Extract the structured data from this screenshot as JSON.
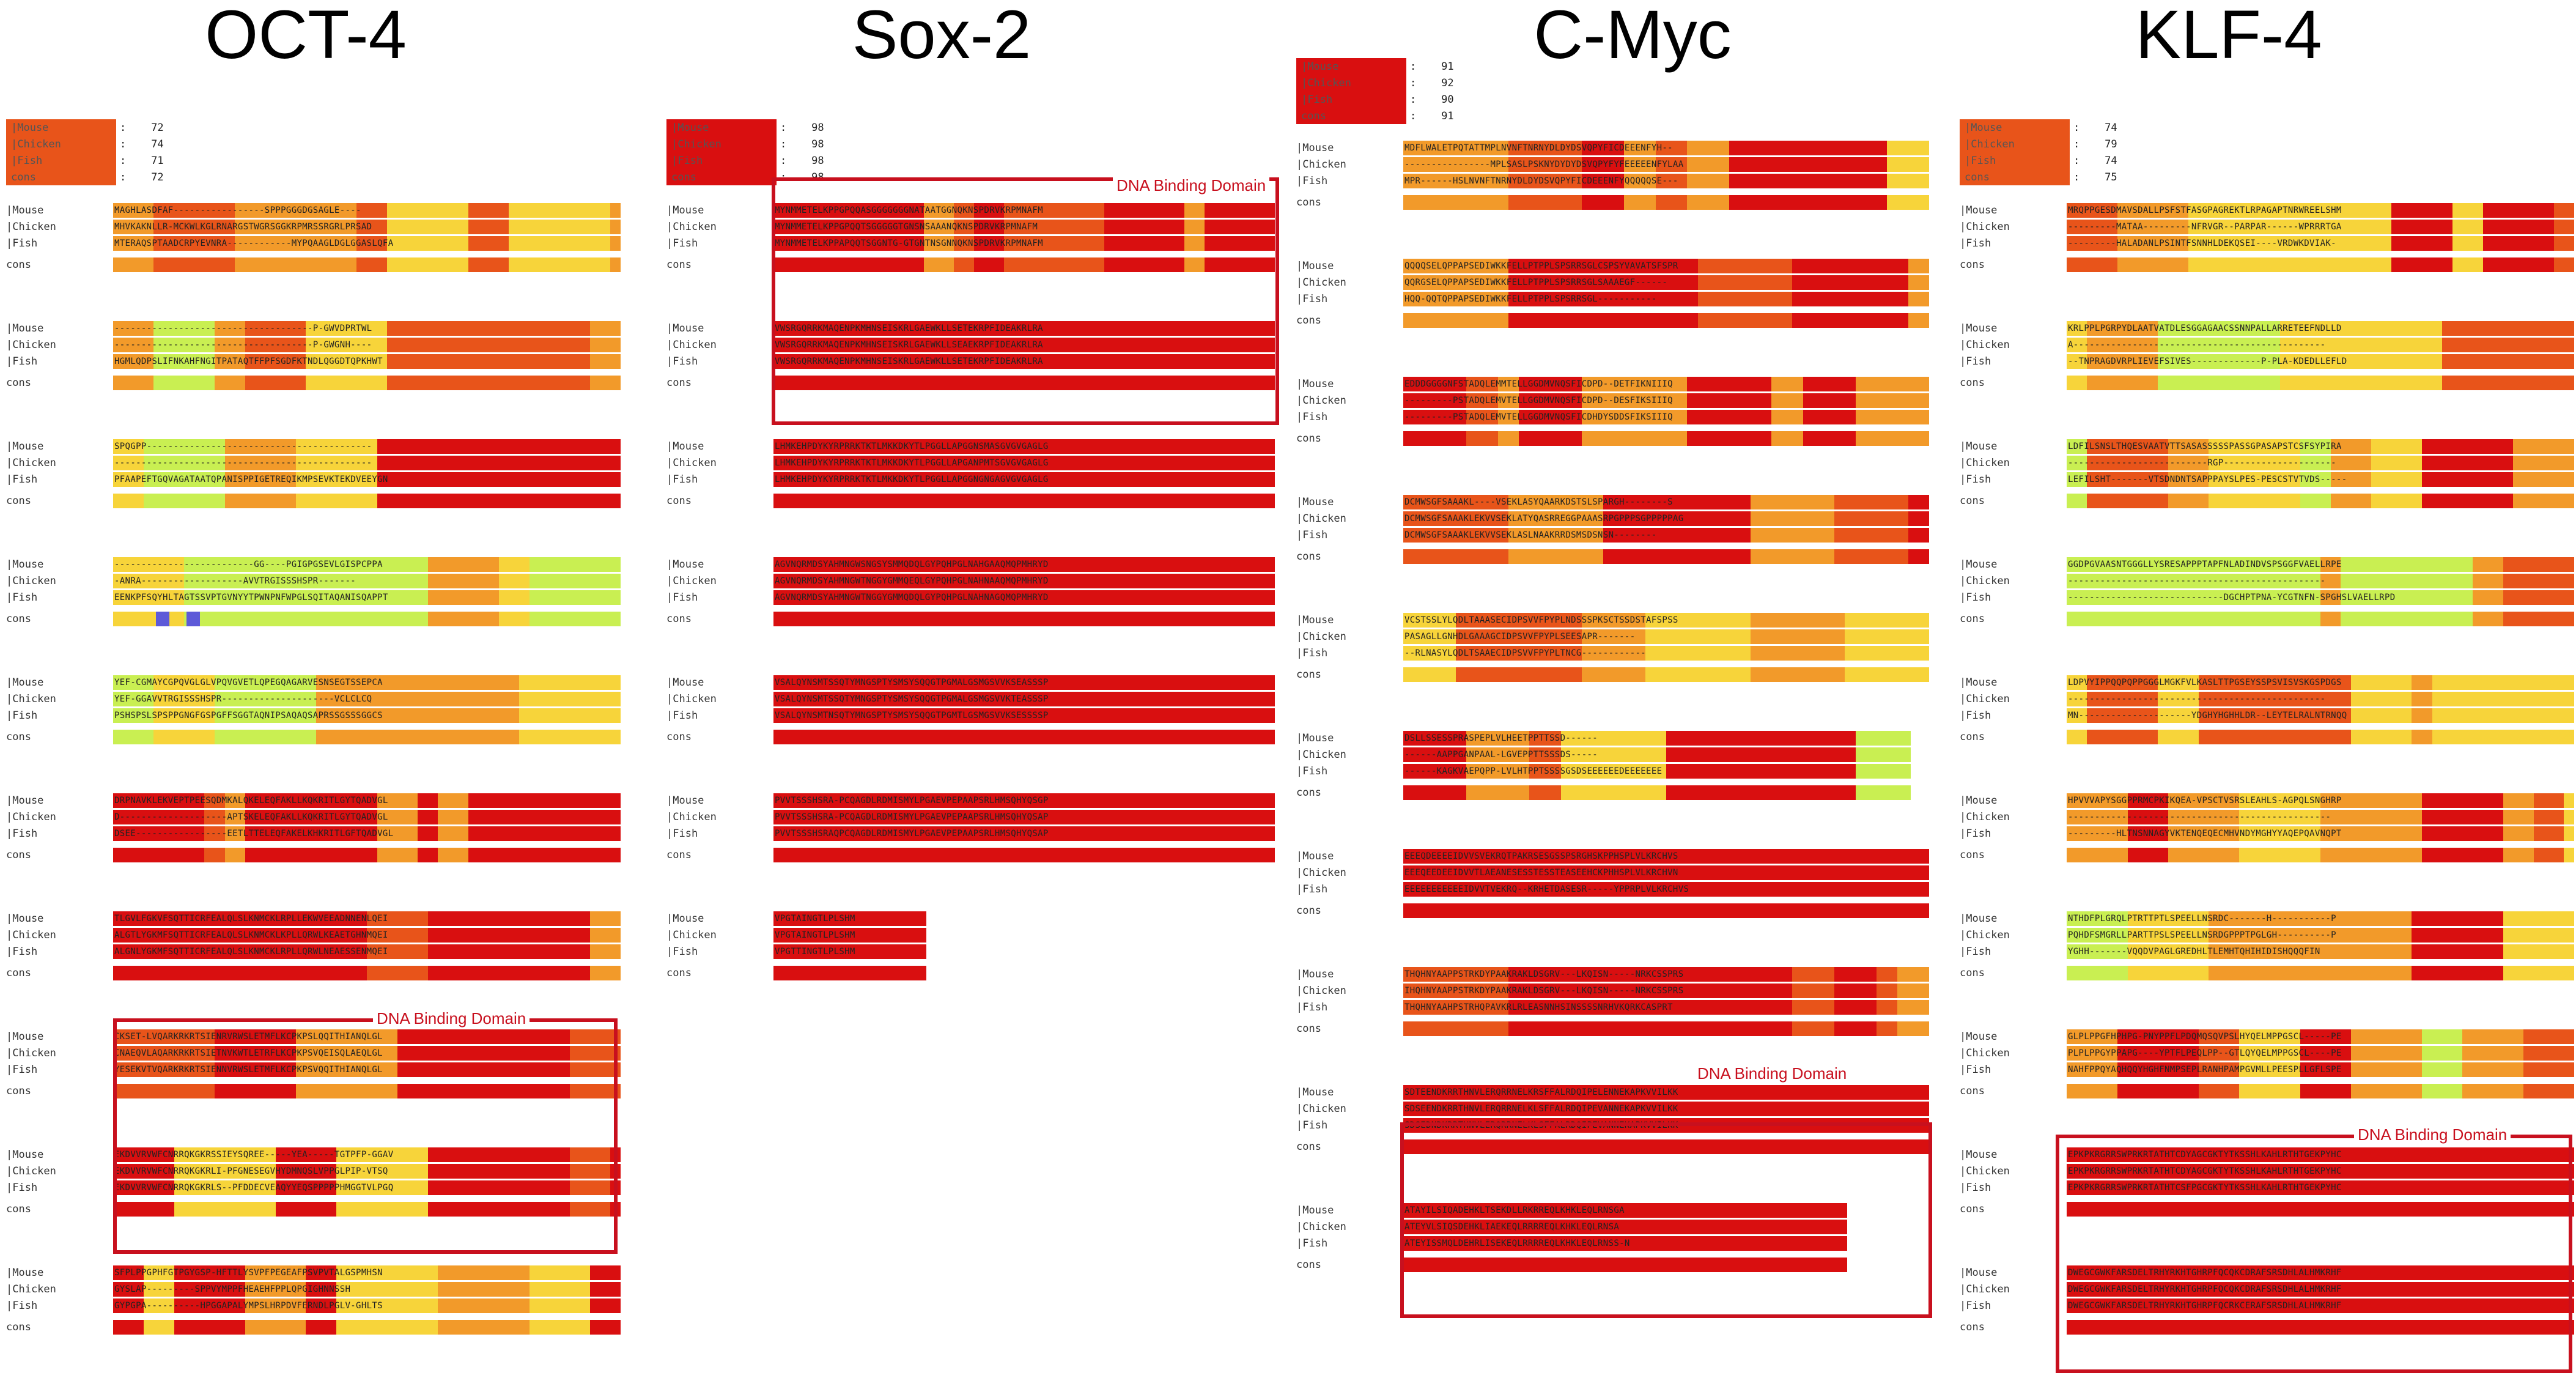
{
  "colors": {
    "high": "#d90f10",
    "mid_high": "#e8541a",
    "mid": "#f29a2a",
    "low_mid": "#f7d43a",
    "low": "#c9ef52",
    "none": "#ffffff",
    "gap": "#5d5ad8",
    "border": "#c8101e"
  },
  "labels": {
    "mouse": "|Mouse",
    "chicken": "|Chicken",
    "fish": "|Fish",
    "cons": "cons",
    "cons_score": "cons",
    "dbd": "DNA Binding Domain"
  },
  "panels": [
    {
      "title": "OCT-4",
      "scores": [
        {
          "name": "|Mouse",
          "value": "72"
        },
        {
          "name": "|Chicken",
          "value": "74"
        },
        {
          "name": "|Fish",
          "value": "71"
        },
        {
          "name": "cons",
          "value": "72"
        }
      ],
      "blocks": [
        {
          "mouse": "MAGHLASDFAF-----------------SPPPGGGDGSAGLE----",
          "chicken": "MHVKAKNLLR-MCKWLKGLRNARGSTWGRSGGKRPMRSSRGRLPRSAD",
          "fish": "MTERAQSPTAADCRPYEVNRA------------MYPQAAGLDGLGGASLQFA"
        },
        {
          "mouse": "-------------------------------------P-GWVDPRTWL",
          "chicken": "-------------------------------------P-GWGNH----",
          "fish": "HGMLQDPSLIFNKAHFNGITPATAQTFFPFSGDFKTNDLQGGDTQPKHWT"
        },
        {
          "mouse": "SPQGPP------------------------------------------",
          "chicken": "------------------------------------------------",
          "fish": "PFAAPEFTGQVAGATAATQPANISPPIGETREQIKMPSEVKTEKDVEEYGN"
        },
        {
          "mouse": "--------------------------GG----PGIGPGSEVLGISPCPPA",
          "chicken": "-ANRA-------------------AVVTRGISSSHSPR-------",
          "fish": "EENKPFSQYHLTAGTSSVPTGVNYYTPWNPNFWPGLSQITAQANISQAPPT"
        },
        {
          "mouse": "YEF-CGMAYCGPQVGLGLVPQVGVETLQPEGQAGARVESNSEGTSSEPCA",
          "chicken": "YEF-GGAVVTRGISSSHSPR---------------------VCLCLCQ",
          "fish": "PSHSPSLSPSPPGNGFGSPGFFSGGTAQNIPSAQAQSAPRSSGSSSGGCS"
        },
        {
          "mouse": "DRPNAVKLEKVEPTPEESQDMKALQKELEQFAKLLKQKRITLGYTQADVGL",
          "chicken": "D--------------------APTSKELEQFAKLLKQKRITLGYTQADVGL",
          "fish": "DSEE-----------------EETLTTELEQFAKELKHKRITLGFTQADVGL"
        },
        {
          "mouse": "TLGVLFGKVFSQTTICRFEALQLSLKNMCKLRPLLEKWVEEADNNENLQEI",
          "chicken": "ALGTLYGKMFSQTTICRFEALQLSLKNMCKLKPLLQRWLKEAETGHNMQEI",
          "fish": "ALGNLYGKMFSQTTICRFEALQLSLKNMCKLRPLLQRWLNEAESSENMQEI"
        },
        {
          "mouse": "CKSET-LVQARKRKRTSIENRVRWSLETMFLKCPKPSLQQITHIANQLGL",
          "chicken": "CNAEQVLAQARKRKRTSIETNVKWTLETRFLKCPKPSVQEISQLAEQLGL",
          "fish": "YESEKVTVQARKRKRTSIENNVRWSLETMFLKCPKPSVQQITHIANQLGL"
        },
        {
          "mouse": "EKDVVRVWFCNRRQKGKRSSIEYSQREE-----YEA-----TGTPFP-GGAV",
          "chicken": "EKDVVRVWFCNRRQKGKRLI-PFGNESEGVHYDMNQSLVPPGLPIP-VTSQ",
          "fish": "EKDVVRVWFCNRRQKGKRLS--PFDDECVEAQYYEQSPPPPPHMGGTVLPGQ"
        },
        {
          "mouse": "SFPLPPGPHFGTPGYGSP-HFTTLYSVPFPEGEAFPSVPVTALGSPMHSN",
          "chicken": "GYSLAP---------SPPVYMPPFHEAEHFPPLQPGIGHNNSSH",
          "fish": "GYPGPA----------HPGGAPALYMPSLHRPDVFERNDLPGLV-GHLTS"
        }
      ],
      "dbd_label": "DNA Binding Domain"
    },
    {
      "title": "Sox-2",
      "scores": [
        {
          "name": "|Mouse",
          "value": "98"
        },
        {
          "name": "|Chicken",
          "value": "98"
        },
        {
          "name": "|Fish",
          "value": "98"
        },
        {
          "name": "cons",
          "value": "98"
        }
      ],
      "blocks": [
        {
          "mouse": "MYNMMETELKPPGPQQASGGGGGGGNATAATGGNQKNSPDRVKRPMNAFM",
          "chicken": "MYNMMETELKPPGPQQTSGGGGGTGNSNSAAANQKNSPDRVKRPMNAFM",
          "fish": "MYNMMETELKPPAPQQTSGGNTG-GTGNTNSGNNQKNSPDRVKRPMNAFM"
        },
        {
          "mouse": "VWSRGQRRKMAQENPKMHNSEISKRLGAEWKLLSETEKRPFIDEAKRLRA",
          "chicken": "VWSRGQRRKMAQENPKMHNSEISKRLGAEWKLLSEAEKRPFIDEAKRLRA",
          "fish": "VWSRGQRRKMAQENPKMHNSEISKRLGAEWKLLSETEKRPFIDEAKRLRA"
        },
        {
          "mouse": "LHMKEHPDYKYRPRRKTKTLMKKDKYTLPGGLLAPGGNSMASGVGVGAGLG",
          "chicken": "LHMKEHPDYKYRPRRKTKTLMKKDKYTLPGGLLAPGANPMTSGVGVGAGLG",
          "fish": "LHMKEHPDYKYRPRRKTKTLMKKDKYTLPGGLLAPGGNGNGAGVGVGAGLG"
        },
        {
          "mouse": "AGVNQRMDSYAHMNGWSNGSYSMMQDQLGYPQHPGLNAHGAAQMQPMHRYD",
          "chicken": "AGVNQRMDSYAHMNGWTNGGYGMMQEQLGYPQHPGLNAHNAAQMQPMHRYD",
          "fish": "AGVNQRMDSYAHMNGWTNGGYGMMQDQLGYPQHPGLNAHNAGQMQPMHRYD"
        },
        {
          "mouse": "VSALQYNSMTSSQTYMNGSPTYSMSYSQQGTPGMALGSMGSVVKSEASSSP",
          "chicken": "VSALQYNSMTSSQTYMNGSPTYSMSYSQQGTPGMALGSMGSVVKTEASSSP",
          "fish": "VSALQYNSMTNSQTYMNGSPTYSMSYSQQGTPGMTLGSMGSVVKSESSSSP"
        },
        {
          "mouse": "PVVTSSSHSRA-PCQAGDLRDMISMYLPGAEVPEPAAPSRLHMSQHYQSGP",
          "chicken": "PVVTSSSHSRA-PCQAGDLRDMISMYLPGAEVPEPAAPSRLHMSQHYQSAP",
          "fish": "PVVTSSSHSRAQPCQAGDLRDMISMYLPGAEVPEPAAPSRLHMSQHYQSAP"
        },
        {
          "mouse": "VPGTAINGTLPLSHM",
          "chicken": "VPGTAINGTLPLSHM",
          "fish": "VPGTTINGTLPLSHM"
        }
      ],
      "dbd_label": "DNA Binding Domain"
    },
    {
      "title": "C-Myc",
      "scores": [
        {
          "name": "|Mouse",
          "value": "91"
        },
        {
          "name": "|Chicken",
          "value": "92"
        },
        {
          "name": "|Fish",
          "value": "90"
        },
        {
          "name": "cons",
          "value": "91"
        }
      ],
      "blocks": [
        {
          "mouse": "MDFLWALETPQTATTMPLNVNFTNRNYDLDYDSVQPYFICDEEENFYH--",
          "chicken": "----------------MPLSASLPSKNYDYDYDSVQPYFYFEEEEENFYLAA",
          "fish": "MPR------HSLNVNFTNRNYDLDYDSVQPYFICDEEENFYQQQQQSE---"
        },
        {
          "mouse": "QQQQSELQPPAPSEDIWKKFELLPTPPLSPSRRSGLCSPSYVAVATSFSPR",
          "chicken": "QQRGSELQPPAPSEDIWKKFELLPTPPLSPSRRSGLSAAAEGF------",
          "fish": "HQQ-QQTQPPAPSEDIWKKFELLPTPPLSPSRRSGL-----------"
        },
        {
          "mouse": "EDDDGGGGNFSTADQLEMMTELLGGDMVNQSFICDPD--DETFIKNIIIQ",
          "chicken": "---------PSTADQLEMVTELLGGDMVNQSFICDPD--DESFIKSIIIQ",
          "fish": "---------PSTADQLEMVTELLGGDMVNQSFICDHDYSDDSFIKSIIIQ"
        },
        {
          "mouse": "DCMWSGFSAAAKL----VSEKLASYQAARKDSTSLSPARGH--------S",
          "chicken": "DCMWSGFSAAAKLEKVVSEKLATYQASRREGGPAAASRPGPPPSGPPPPPAG",
          "fish": "DCMWSGFSAAAKLEKVVSEKLASLNAAKRRDSMSDSNSN--------"
        },
        {
          "mouse": "VCSTSSLYLQDLTAAASECIDPSVVFPYPLNDSSSPKSCTSSDSTAFSPSS",
          "chicken": "PASAGLLGNHDLGAAAGCIDPSVVFPYPLSEESAPR-------",
          "fish": "--RLNASYLQDLTSAAECIDPSVVFPYPLTNCG------------"
        },
        {
          "mouse": "DSLLSSESSPRASPEPLVLHEETPPTTSSD------",
          "chicken": "------AAPPGANPAAL-LGVEPPTTSSSDS-----",
          "fish": "------KAGKVAEPQPP-LVLHTPPTSSSSGSDSEEEEEEDEEEEEEE"
        },
        {
          "mouse": "EEEQDEEEEIDVVSVEKRQTPAKRSESGSSPSRGHSKPPHSPLVLKRCHVS",
          "chicken": "EEEQEEDEEIDVVTLAEANESESSTESSTEASEEHCKPHHSPLVLKRCHVN",
          "fish": "EEEEEEEEEEEIDVVTVEKRQ--KRHETDASESR-----YPPRPLVLKRCHVS"
        },
        {
          "mouse": "THQHNYAAPPSTRKDYPAAKRAKLDSGRV---LKQISN-----NRKCSSPRS",
          "chicken": "IHQHNYAAPPSTRKDYPAAKRAKLDSGRV---LKQISN-----NRKCSSPRS",
          "fish": "THQHNYAAHPSTRHQPAVKRLRLEASNNHSINSSSSNRHVKQRKCASPRT"
        },
        {
          "mouse": "SDTEENDKRRTHNVLERQRRNELKRSFFALRDQIPELENNEKAPKVVILKK",
          "chicken": "SDSEENDKRRTHNVLERQRRNELKLSFFALRDQIPEVANNEKAPKVVILKK",
          "fish": "SDSEDNDKRRTHNVLERQRRNELKLSFFALRDQIPEVANNEKAPKVVILKK"
        },
        {
          "mouse": "ATAYILSIQADEHKLTSEKDLLRKRREQLKHKLEQLRNSGA",
          "chicken": "ATEYVLSIQSDEHKLIAEKEQLRRRREQLKHKLEQLRNSA",
          "fish": "ATEYISSMQLDEHRLISEKEQLRRRREQLKHKLEQLRNSS-N"
        }
      ],
      "dbd_label": "DNA Binding Domain"
    },
    {
      "title": "KLF-4",
      "scores": [
        {
          "name": "|Mouse",
          "value": "74"
        },
        {
          "name": "|Chicken",
          "value": "79"
        },
        {
          "name": "|Fish",
          "value": "74"
        },
        {
          "name": "cons",
          "value": "75"
        }
      ],
      "blocks": [
        {
          "mouse": "MRQPPGESDMAVSDALLPSFSTFASGPAGREKTLRPAGAPTNRWREELSHM",
          "chicken": "---------MATAA---------NFRVGR--PARPAR------WPRRRTGA",
          "fish": "---------HALADANLPSINTFSNNHLDEKQSEI----VRDWKDVIAK-"
        },
        {
          "mouse": "KRLPPLPGRPYDLAATVATDLESGGAGAACSSNNPALLARRETEEFNDLLD",
          "chicken": "A-----------------------------------------------",
          "fish": "--TNPRAGDVRPLIEVEFSIVES-------------P-PLA-KDEDLLEFLD"
        },
        {
          "mouse": "LDFILSNSLTHQESVAATVTTSASASSSSSPASSGPASAPSTCSFSYPIRA",
          "chicken": "--------------------------RGP---------------------",
          "fish": "LEFILSHT-------VTSDNDNTSAPPPAYSLPES-PESCSTVTVDS-----"
        },
        {
          "mouse": "GGDPGVAASNTGGGLLYSRESAPPPTAPFNLADINDVSPSGGFVAELLRPE",
          "chicken": "------------------------------------------------",
          "fish": "-----------------------------DGCHPTPNA-YCGTNFN-SPGHSLVAELLRPD"
        },
        {
          "mouse": "LDPVYIPPQQPQPPGGGLMGKFVLKASLTTPGSEYSSPSVISVSKGSPDGS",
          "chicken": "------------------------------------------------",
          "fish": "MN---------------------YDGHYHGHHLDR--LEYTELRALNTRNQQ"
        },
        {
          "mouse": "HPVVVAPYSGGPPRMCPKIKQEA-VPSCTVSRSLEAHLS-AGPQLSNGHRP",
          "chicken": "-------------------------------------------------",
          "fish": "---------HLTNSNNAGYVKTENQEQECMHVNDYMGHYYAQEPQAVNQPT"
        },
        {
          "mouse": "NTHDFPLGRQLPTRTTPTLSPEELLNSRDC-------H-----------P",
          "chicken": "PQHDFSMGRLLPARTTPSLSPEELLNSRDGPPPTPGLGH----------P",
          "fish": "YGHH-------VQQDVPAGLGREDHLTLEMHTQHIHIDISHQQQFIN"
        },
        {
          "mouse": "GLPLPPGFHPHPG-PNYPPFLPDQMQSQVPSLHYQELMPPGSCL-----PE",
          "chicken": "PLPLPPGYPPAPG----YPTFLPEQLPP--GTLQYQELMPPGSCL----PE",
          "fish": "NAHFPPQYAQHQQYHGHFNMPSEPLRANHPAMPGVMLLPEESPLLGFLSPE"
        },
        {
          "mouse": "EPKPKRGRRSWPRKRTATHTCDYAGCGKTYTKSSHLKAHLRTHTGEKPYHC",
          "chicken": "EPKPKRGRRSWPRKRTATHTCDYAGCGKTYTKSSHLKAHLRTHTGEKPYHC",
          "fish": "EPKPKRGRRSWPRKRTATHTCSFPGCGKTYTKSSHLKAHLRTHTGEKPYHC"
        },
        {
          "mouse": "DWEGCGWKFARSDELTRHYRKHTGHRPFQCQKCDRAFSRSDHLALHMKRHF",
          "chicken": "DWEGCGWKFARSDELTRHYRKHTGHRPFQCQKCDRAFSRSDHLALHMKRHF",
          "fish": "DWEGCGWKFARSDELTRHYRKHTGHRPFQCRKCERAFSRSDHLALHMKRHF"
        }
      ],
      "dbd_label": "DNA Binding Domain"
    }
  ]
}
